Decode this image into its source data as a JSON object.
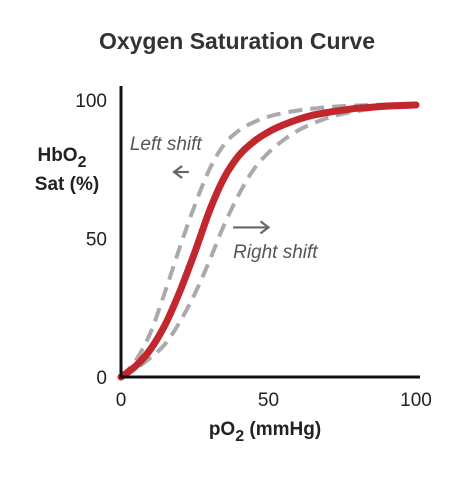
{
  "chart_data": {
    "type": "line",
    "title": "Oxygen Saturation Curve",
    "xlabel": {
      "prefix": "pO",
      "subscript": "2",
      "suffix": " (mmHg)"
    },
    "ylabel": {
      "line1_prefix": "HbO",
      "line1_subscript": "2",
      "line2": "Sat (%)"
    },
    "xlim": [
      0,
      100
    ],
    "ylim": [
      0,
      100
    ],
    "xticks": [
      {
        "value": 0,
        "label": "0"
      },
      {
        "value": 50,
        "label": "50"
      },
      {
        "value": 100,
        "label": "100"
      }
    ],
    "yticks": [
      {
        "value": 0,
        "label": "0"
      },
      {
        "value": 50,
        "label": "50"
      },
      {
        "value": 100,
        "label": "100"
      }
    ],
    "grid": false,
    "series": [
      {
        "style": "solid",
        "color": "#c1272d",
        "x": [
          0,
          5,
          10,
          15,
          20,
          25,
          30,
          35,
          40,
          45,
          50,
          55,
          60,
          65,
          70,
          75,
          80,
          85,
          90,
          95,
          100
        ],
        "y": [
          0,
          4,
          10,
          19,
          31,
          45,
          60,
          72,
          80,
          85,
          88.5,
          91,
          93,
          94.5,
          95.5,
          96.3,
          97,
          97.4,
          97.8,
          98,
          98.2
        ]
      },
      {
        "style": "dashed",
        "color": "#aaaaaa",
        "x": [
          0,
          5,
          10,
          15,
          20,
          25,
          30,
          35,
          40,
          45,
          50,
          55,
          60,
          65,
          70,
          75,
          80,
          85,
          90,
          95,
          100
        ],
        "y": [
          0,
          6,
          16,
          31,
          47,
          62,
          75,
          84,
          89,
          92,
          94,
          95.3,
          96.2,
          96.9,
          97.4,
          97.8,
          98,
          98.2,
          98.4,
          98.5,
          98.6
        ]
      },
      {
        "style": "dashed",
        "color": "#aaaaaa",
        "x": [
          0,
          5,
          10,
          15,
          20,
          25,
          30,
          35,
          40,
          45,
          50,
          55,
          60,
          65,
          70,
          75,
          80,
          85,
          90,
          95,
          100
        ],
        "y": [
          0,
          3,
          7,
          12,
          20,
          30,
          42,
          55,
          66,
          75,
          81,
          85.5,
          89,
          91.5,
          93.5,
          95,
          96,
          96.8,
          97.3,
          97.7,
          98
        ]
      }
    ],
    "annotations": [
      {
        "id": "left",
        "text": "Left shift",
        "x": 3,
        "y": 82,
        "arrow_from": [
          23,
          74
        ],
        "arrow_to": [
          18,
          74
        ]
      },
      {
        "id": "right",
        "text": "Right shift",
        "x": 38,
        "y": 43,
        "arrow_from": [
          38,
          54
        ],
        "arrow_to": [
          50,
          54
        ]
      }
    ],
    "colors": {
      "curve": "#c1272d",
      "shift_curves": "#aaaaaa",
      "axes": "#111111",
      "arrow": "#666666",
      "text": "#222222"
    }
  }
}
